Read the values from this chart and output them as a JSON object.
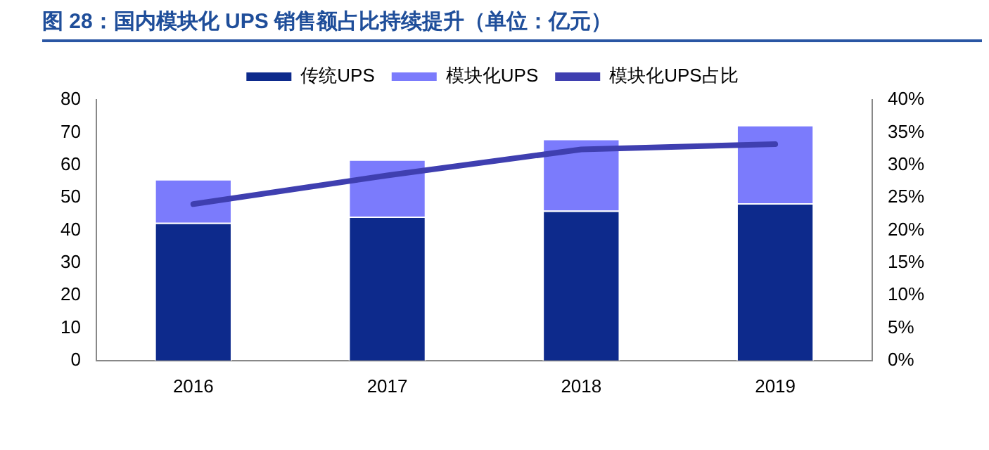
{
  "chart_data": {
    "type": "bar",
    "title": "图 28：国内模块化 UPS 销售额占比持续提升（单位：亿元）",
    "categories": [
      "2016",
      "2017",
      "2018",
      "2019"
    ],
    "stacked": true,
    "series": [
      {
        "name": "传统UPS",
        "color": "#0d2a8c",
        "values": [
          42.3,
          44.2,
          46,
          48.3
        ]
      },
      {
        "name": "模块化UPS",
        "color": "#7b7bfc",
        "values": [
          13.4,
          17.5,
          22,
          24
        ]
      },
      {
        "name": "模块化UPS占比",
        "type": "line",
        "axis": "y2",
        "color": "#3f3fb0",
        "values": [
          24,
          28.4,
          32.4,
          33.2
        ]
      }
    ],
    "ylim": [
      0,
      80
    ],
    "yticks": [
      0,
      10,
      20,
      30,
      40,
      50,
      60,
      70,
      80
    ],
    "y2lim": [
      0,
      40
    ],
    "y2ticks": [
      {
        "value": 0,
        "label": "0%"
      },
      {
        "value": 5,
        "label": "5%"
      },
      {
        "value": 10,
        "label": "10%"
      },
      {
        "value": 15,
        "label": "15%"
      },
      {
        "value": 20,
        "label": "20%"
      },
      {
        "value": 25,
        "label": "25%"
      },
      {
        "value": 30,
        "label": "30%"
      },
      {
        "value": 35,
        "label": "35%"
      },
      {
        "value": 40,
        "label": "40%"
      }
    ],
    "grid": false,
    "legend": "top",
    "marker": "none"
  }
}
